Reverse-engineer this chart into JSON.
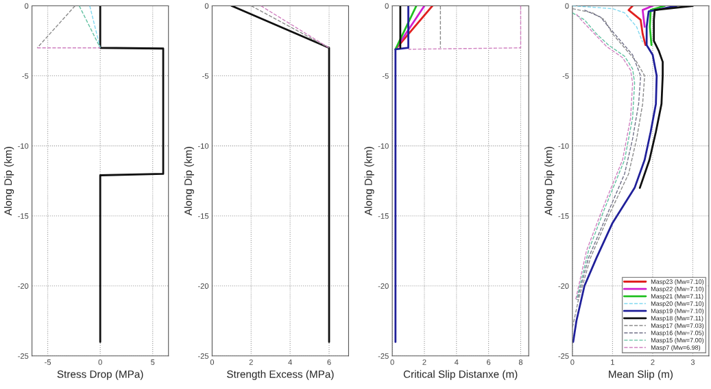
{
  "chart_data": [
    {
      "type": "line",
      "xlabel": "Stress Drop (MPa)",
      "ylabel": "Along Dip (km)",
      "xlim": [
        -6.5,
        6.5
      ],
      "xticks": [
        -5,
        0,
        5
      ],
      "ylim": [
        -25,
        0
      ],
      "yticks": [
        -25,
        -20,
        -15,
        -10,
        -5,
        0
      ],
      "grid": true,
      "series": [
        {
          "color": "#80d8f0",
          "line_style": "dashed",
          "x": [
            -1,
            0
          ],
          "values": [
            0,
            -3
          ]
        },
        {
          "color": "#101010",
          "line_style": "solid",
          "x": [
            0,
            0,
            6,
            6,
            0,
            0
          ],
          "values": [
            0,
            -3,
            -3.05,
            -12,
            -12.1,
            -24
          ]
        },
        {
          "color": "#8a8a8a",
          "line_style": "dashed",
          "x": [
            -2.4,
            -6
          ],
          "values": [
            0,
            -3
          ]
        },
        {
          "color": "#60c0a0",
          "line_style": "dashed",
          "x": [
            -2,
            0
          ],
          "values": [
            0,
            -3
          ]
        },
        {
          "color": "#d080c0",
          "line_style": "dashed",
          "x": [
            -6,
            0
          ],
          "values": [
            -3,
            -3
          ]
        }
      ]
    },
    {
      "type": "line",
      "xlabel": "Strength Excess (MPa)",
      "ylabel": "Along Dip (km)",
      "xlim": [
        0,
        7
      ],
      "xticks": [
        0,
        2,
        4,
        6
      ],
      "ylim": [
        -25,
        0
      ],
      "yticks": [
        -25,
        -20,
        -15,
        -10,
        -5,
        0
      ],
      "grid": true,
      "series": [
        {
          "color": "#101010",
          "line_style": "solid",
          "x": [
            1,
            6,
            6
          ],
          "values": [
            0,
            -3,
            -24
          ]
        },
        {
          "color": "#8a8a8a",
          "line_style": "dashed",
          "x": [
            2,
            6
          ],
          "values": [
            0,
            -3
          ]
        },
        {
          "color": "#d080c0",
          "line_style": "dashed",
          "x": [
            2.5,
            6
          ],
          "values": [
            0,
            -3
          ]
        }
      ]
    },
    {
      "type": "line",
      "xlabel": "Critical Slip Distanxe (m)",
      "ylabel": "Along Dip (km)",
      "xlim": [
        0,
        8.5
      ],
      "xticks": [
        0,
        2,
        4,
        6,
        8
      ],
      "ylim": [
        -25,
        0
      ],
      "yticks": [
        -25,
        -20,
        -15,
        -10,
        -5,
        0
      ],
      "grid": true,
      "series": [
        {
          "color": "#e02020",
          "line_style": "solid",
          "x": [
            2.5,
            0.2
          ],
          "values": [
            0,
            -3.1
          ]
        },
        {
          "color": "#d020d0",
          "line_style": "solid",
          "x": [
            2,
            0.2
          ],
          "values": [
            0,
            -3.1
          ]
        },
        {
          "color": "#20c020",
          "line_style": "solid",
          "x": [
            1.5,
            0.2
          ],
          "values": [
            0,
            -3.1
          ]
        },
        {
          "color": "#20209a",
          "line_style": "solid",
          "x": [
            1,
            1,
            0.2,
            0.2
          ],
          "values": [
            0,
            -3,
            -3.1,
            -24
          ]
        },
        {
          "color": "#101010",
          "line_style": "solid",
          "x": [
            0.5,
            0.5
          ],
          "values": [
            0,
            -3
          ]
        },
        {
          "color": "#8a8a8a",
          "line_style": "dashed",
          "x": [
            3,
            3
          ],
          "values": [
            0,
            -3
          ]
        },
        {
          "color": "#d080c0",
          "line_style": "dashed",
          "x": [
            8,
            8,
            1
          ],
          "values": [
            0,
            -3,
            -3.1
          ]
        }
      ]
    },
    {
      "type": "line",
      "xlabel": "Mean Slip (m)",
      "ylabel": "Along Dip (km)",
      "xlim": [
        0,
        3.4
      ],
      "xticks": [
        0,
        1,
        2,
        3
      ],
      "ylim": [
        -25,
        0
      ],
      "yticks": [
        -25,
        -20,
        -15,
        -10,
        -5,
        0
      ],
      "grid": true,
      "legend": "bottom right",
      "series": [
        {
          "name": "Masp23 (Mw=7.10)",
          "color": "#e02020",
          "line_style": "solid",
          "x": [
            1.5,
            1.4,
            1.7,
            1.75,
            1.82
          ],
          "values": [
            0,
            -0.3,
            -1,
            -2,
            -2.8
          ]
        },
        {
          "name": "Masp22 (Mw=7.10)",
          "color": "#d020d0",
          "line_style": "solid",
          "x": [
            2.0,
            1.75,
            1.8
          ],
          "values": [
            0,
            -0.3,
            -1.5
          ]
        },
        {
          "name": "Masp21 (Mw=7.11)",
          "color": "#20c020",
          "line_style": "solid",
          "x": [
            2.3,
            1.95,
            1.93,
            1.97
          ],
          "values": [
            0,
            -0.3,
            -1.5,
            -2.8
          ]
        },
        {
          "name": "Masp20 (Mw=7.10)",
          "color": "#80d8f0",
          "line_style": "dashed",
          "x": [
            0,
            1.0,
            1.3,
            1.6,
            1.75
          ],
          "values": [
            0,
            -0.2,
            -0.5,
            -1.5,
            -2.6
          ]
        },
        {
          "name": "Masp19 (Mw=7.10)",
          "color": "#20209a",
          "line_style": "solid",
          "x": [
            2.6,
            1.9,
            1.85,
            1.85,
            2.0,
            2.1,
            2.08,
            1.95,
            1.8,
            1.55,
            1.0,
            0.6,
            0.3,
            0.1,
            0.02
          ],
          "values": [
            0,
            -0.4,
            -1.5,
            -2.8,
            -3.5,
            -5,
            -7,
            -9,
            -11,
            -13,
            -15.5,
            -18,
            -20,
            -22.5,
            -24
          ]
        },
        {
          "name": "Masp18 (Mw=7.11)",
          "color": "#101010",
          "line_style": "solid",
          "x": [
            3.0,
            2.05,
            2.03,
            2.03,
            2.15,
            2.25,
            2.25,
            2.22,
            2.08,
            1.92,
            1.68
          ],
          "values": [
            0,
            -0.3,
            -1,
            -2.5,
            -3.2,
            -4,
            -5,
            -7,
            -9,
            -11,
            -13
          ]
        },
        {
          "name": "Masp17 (Mw=7.03)",
          "color": "#8a8a8a",
          "line_style": "dashed",
          "x": [
            0,
            0.5,
            0.8,
            1.0,
            1.3,
            1.6,
            1.8,
            1.75,
            1.6,
            1.4,
            0.9,
            0.45,
            0.15,
            0
          ],
          "values": [
            -0.2,
            -0.5,
            -1,
            -2,
            -3,
            -4,
            -5,
            -7,
            -9.5,
            -12,
            -15,
            -18,
            -21,
            -23
          ]
        },
        {
          "name": "Masp16 (Mw=7.05)",
          "color": "#707088",
          "line_style": "dashed",
          "x": [
            0.3,
            0.7,
            0.9,
            1.2,
            1.5,
            1.7,
            1.65,
            1.5,
            1.3,
            0.85,
            0.4,
            0.12
          ],
          "values": [
            -0.3,
            -0.8,
            -1.5,
            -2.5,
            -3.5,
            -5,
            -7,
            -9.5,
            -12,
            -15,
            -18,
            -21
          ]
        },
        {
          "name": "Masp15 (Mw=7.00)",
          "color": "#60c0a0",
          "line_style": "dashed",
          "x": [
            0,
            0.3,
            0.6,
            0.9,
            1.3,
            1.5,
            1.55,
            1.5,
            1.3,
            0.8,
            0.4,
            0.1
          ],
          "values": [
            -0.5,
            -1,
            -2,
            -2.8,
            -3.6,
            -4.5,
            -5.5,
            -8,
            -11,
            -14.5,
            -17.5,
            -21
          ]
        },
        {
          "name": "Masp7 (Mw=6.98)",
          "color": "#d080c0",
          "line_style": "dashed",
          "x": [
            0.1,
            0.25,
            0.55,
            0.85,
            1.25,
            1.45,
            1.5,
            1.45,
            1.25,
            0.75,
            0.35,
            0.08
          ],
          "values": [
            -0.6,
            -1.1,
            -2,
            -2.9,
            -3.7,
            -4.6,
            -5.5,
            -8,
            -11,
            -14.5,
            -17.5,
            -21
          ]
        }
      ]
    }
  ]
}
